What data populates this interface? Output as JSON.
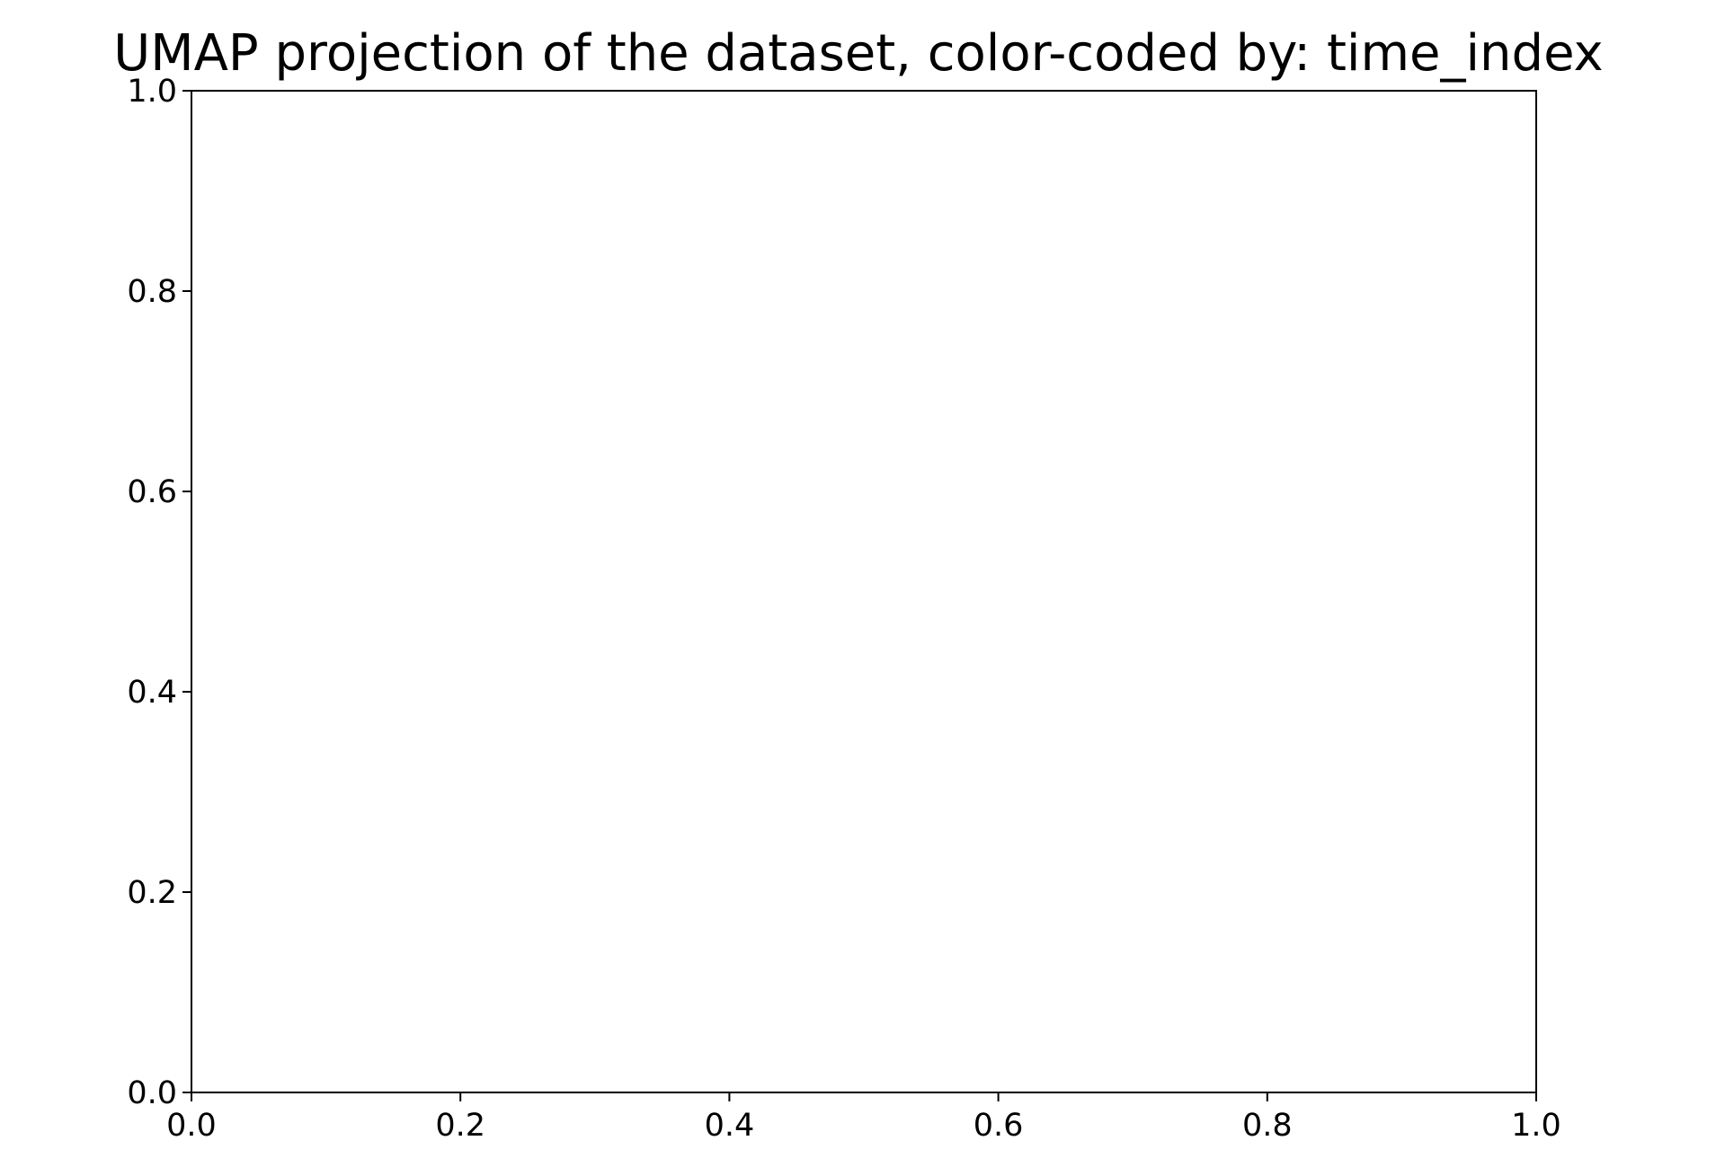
{
  "chart_data": {
    "type": "scatter",
    "title": "UMAP projection of the dataset, color-coded by: time_index",
    "xlabel": "",
    "ylabel": "",
    "xlim": [
      0.0,
      1.0
    ],
    "ylim": [
      0.0,
      1.0
    ],
    "x_ticks": [
      "0.0",
      "0.2",
      "0.4",
      "0.6",
      "0.8",
      "1.0"
    ],
    "y_ticks": [
      "0.0",
      "0.2",
      "0.4",
      "0.6",
      "0.8",
      "1.0"
    ],
    "grid": false,
    "legend": "none",
    "series": [
      {
        "x": [],
        "y": []
      }
    ],
    "colors": {
      "axes": "#000000",
      "background": "#ffffff"
    }
  }
}
